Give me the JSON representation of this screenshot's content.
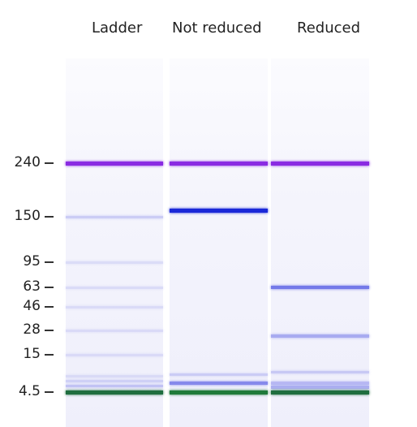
{
  "lanes": [
    {
      "label": "Ladder",
      "bands": [
        {
          "size": 240,
          "color": "#8a2be2",
          "intensity": 1.0
        },
        {
          "size": 150,
          "color": "#9a9cee",
          "intensity": 0.45
        },
        {
          "size": 95,
          "color": "#b0b2f0",
          "intensity": 0.35
        },
        {
          "size": 63,
          "color": "#b0b2f0",
          "intensity": 0.35
        },
        {
          "size": 46,
          "color": "#b0b2f0",
          "intensity": 0.35
        },
        {
          "size": 28,
          "color": "#b0b2f0",
          "intensity": 0.35
        },
        {
          "size": 15,
          "color": "#b0b2f0",
          "intensity": 0.35
        },
        {
          "size": 9,
          "color": "#b8baf0",
          "intensity": 0.4
        },
        {
          "size": 7.5,
          "color": "#a8aaf0",
          "intensity": 0.45
        },
        {
          "size": 6.2,
          "color": "#9496ee",
          "intensity": 0.5
        },
        {
          "size": 4.5,
          "color": "#1f6e3f",
          "intensity": 1.0
        }
      ]
    },
    {
      "label": "Not reduced",
      "bands": [
        {
          "size": 240,
          "color": "#8a2be2",
          "intensity": 1.0
        },
        {
          "size": 160,
          "color": "#1a28d8",
          "intensity": 1.0
        },
        {
          "size": 9.5,
          "color": "#a8aaf0",
          "intensity": 0.5
        },
        {
          "size": 7,
          "color": "#6c70e8",
          "intensity": 0.8
        },
        {
          "size": 4.5,
          "color": "#1f7a3a",
          "intensity": 1.0
        }
      ]
    },
    {
      "label": "Reduced",
      "bands": [
        {
          "size": 240,
          "color": "#8a2be2",
          "intensity": 1.0
        },
        {
          "size": 63,
          "color": "#5f64e6",
          "intensity": 0.85
        },
        {
          "size": 25,
          "color": "#8a8eec",
          "intensity": 0.7
        },
        {
          "size": 10,
          "color": "#a8aaf0",
          "intensity": 0.55
        },
        {
          "size": 7,
          "color": "#9496ee",
          "intensity": 0.6
        },
        {
          "size": 5.8,
          "color": "#8a8eec",
          "intensity": 0.65
        },
        {
          "size": 4.5,
          "color": "#1f6e3f",
          "intensity": 1.0
        }
      ]
    }
  ],
  "ladder": [
    {
      "size": 240,
      "label": "240"
    },
    {
      "size": 150,
      "label": "150"
    },
    {
      "size": 95,
      "label": "95"
    },
    {
      "size": 63,
      "label": "63"
    },
    {
      "size": 46,
      "label": "46"
    },
    {
      "size": 28,
      "label": "28"
    },
    {
      "size": 15,
      "label": "15"
    },
    {
      "size": 4.5,
      "label": "4.5"
    }
  ]
}
